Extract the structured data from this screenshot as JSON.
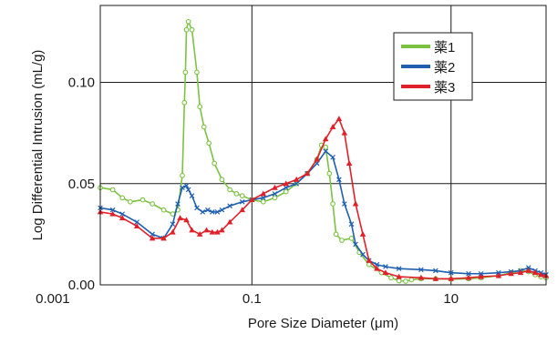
{
  "chart_data": {
    "type": "line",
    "title": "",
    "xlabel": "Pore Size Diameter (μm)",
    "ylabel": "Log Differential Intrusion (mL/g)",
    "x_scale": "log",
    "xlim": [
      0.003,
      90
    ],
    "ylim": [
      0,
      0.138
    ],
    "x_ticks": [
      0.001,
      0.1,
      10
    ],
    "x_tick_labels": [
      "0.001",
      "0.1",
      "10"
    ],
    "y_ticks": [
      0,
      0.05,
      0.1
    ],
    "y_tick_labels": [
      "0.00",
      "0.05",
      "0.10"
    ],
    "grid": true,
    "legend_position": "top-right",
    "colors": {
      "薬1": "#7cc242",
      "薬2": "#1f5fae",
      "薬3": "#e0202a"
    },
    "series": [
      {
        "name": "薬1",
        "marker": "circle",
        "x": [
          0.003,
          0.004,
          0.005,
          0.006,
          0.008,
          0.01,
          0.013,
          0.016,
          0.018,
          0.02,
          0.021,
          0.0215,
          0.022,
          0.023,
          0.025,
          0.028,
          0.03,
          0.033,
          0.037,
          0.042,
          0.05,
          0.06,
          0.07,
          0.08,
          0.1,
          0.13,
          0.17,
          0.22,
          0.28,
          0.36,
          0.45,
          0.5,
          0.55,
          0.6,
          0.65,
          0.7,
          0.8,
          1.0,
          1.2,
          1.5,
          2.0,
          2.5,
          3.0,
          3.5,
          4.0,
          5.0,
          7.0,
          10,
          15,
          20,
          30,
          40,
          50,
          60,
          70,
          80,
          90
        ],
        "y": [
          0.048,
          0.047,
          0.043,
          0.041,
          0.042,
          0.04,
          0.037,
          0.035,
          0.037,
          0.054,
          0.09,
          0.105,
          0.126,
          0.13,
          0.126,
          0.105,
          0.088,
          0.078,
          0.07,
          0.06,
          0.052,
          0.047,
          0.045,
          0.044,
          0.042,
          0.041,
          0.043,
          0.046,
          0.05,
          0.055,
          0.062,
          0.069,
          0.068,
          0.055,
          0.04,
          0.025,
          0.022,
          0.023,
          0.016,
          0.01,
          0.006,
          0.0035,
          0.002,
          0.0018,
          0.0025,
          0.003,
          0.003,
          0.0028,
          0.003,
          0.0035,
          0.0045,
          0.006,
          0.007,
          0.0065,
          0.005,
          0.004,
          0.0035
        ]
      },
      {
        "name": "薬2",
        "marker": "x",
        "x": [
          0.003,
          0.004,
          0.005,
          0.007,
          0.01,
          0.013,
          0.016,
          0.018,
          0.02,
          0.022,
          0.023,
          0.025,
          0.028,
          0.032,
          0.036,
          0.04,
          0.045,
          0.05,
          0.06,
          0.08,
          0.1,
          0.13,
          0.17,
          0.22,
          0.28,
          0.36,
          0.45,
          0.55,
          0.65,
          0.75,
          0.85,
          1.0,
          1.1,
          1.3,
          1.5,
          1.8,
          2.2,
          3,
          5,
          7,
          10,
          15,
          20,
          30,
          40,
          50,
          60,
          70,
          80,
          90
        ],
        "y": [
          0.038,
          0.037,
          0.035,
          0.031,
          0.025,
          0.023,
          0.03,
          0.04,
          0.048,
          0.049,
          0.047,
          0.044,
          0.038,
          0.036,
          0.037,
          0.036,
          0.036,
          0.037,
          0.039,
          0.041,
          0.042,
          0.043,
          0.045,
          0.048,
          0.05,
          0.055,
          0.06,
          0.066,
          0.063,
          0.052,
          0.04,
          0.03,
          0.02,
          0.015,
          0.012,
          0.01,
          0.009,
          0.008,
          0.0075,
          0.007,
          0.006,
          0.0055,
          0.0055,
          0.006,
          0.0065,
          0.007,
          0.0085,
          0.007,
          0.006,
          0.005
        ]
      },
      {
        "name": "薬3",
        "marker": "triangle",
        "x": [
          0.003,
          0.004,
          0.005,
          0.007,
          0.01,
          0.013,
          0.016,
          0.019,
          0.022,
          0.025,
          0.03,
          0.035,
          0.04,
          0.045,
          0.05,
          0.06,
          0.08,
          0.1,
          0.13,
          0.17,
          0.22,
          0.28,
          0.36,
          0.45,
          0.55,
          0.65,
          0.75,
          0.85,
          0.95,
          1.1,
          1.3,
          1.5,
          1.8,
          2.2,
          3,
          5,
          7,
          10,
          15,
          20,
          30,
          40,
          50,
          60,
          70,
          80,
          90
        ],
        "y": [
          0.036,
          0.035,
          0.033,
          0.029,
          0.023,
          0.023,
          0.026,
          0.033,
          0.032,
          0.027,
          0.025,
          0.027,
          0.026,
          0.026,
          0.027,
          0.031,
          0.037,
          0.042,
          0.045,
          0.048,
          0.05,
          0.052,
          0.055,
          0.062,
          0.072,
          0.078,
          0.082,
          0.075,
          0.06,
          0.04,
          0.025,
          0.012,
          0.008,
          0.006,
          0.004,
          0.0035,
          0.003,
          0.003,
          0.0035,
          0.004,
          0.0045,
          0.0055,
          0.006,
          0.007,
          0.006,
          0.005,
          0.0045
        ]
      }
    ]
  }
}
